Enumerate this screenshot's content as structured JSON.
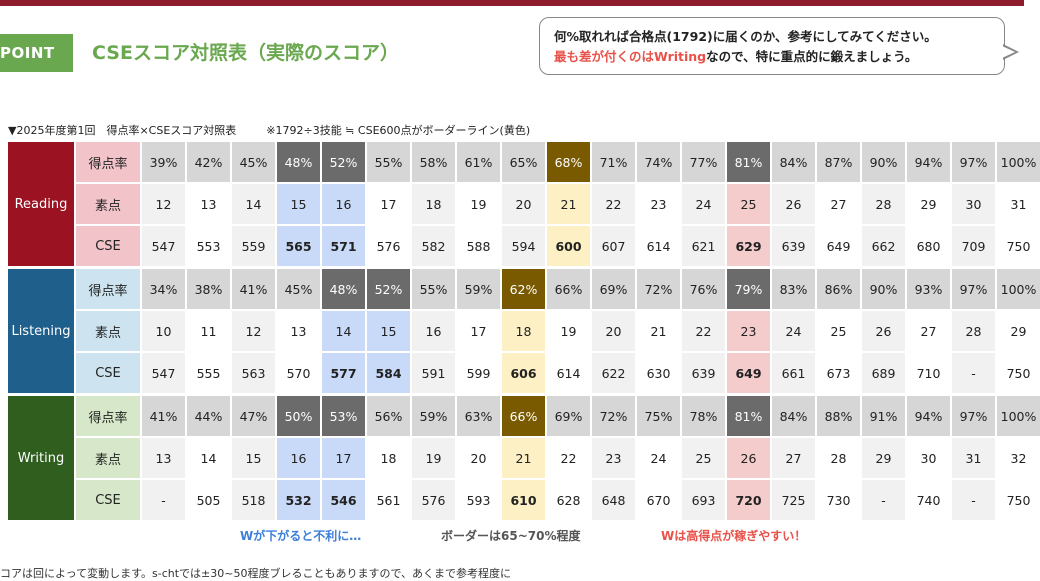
{
  "colors": {
    "brand": "#8e1b2b",
    "green": "#6aa84f",
    "accent_red": "#e8524a",
    "blue_text": "#3d7fd9"
  },
  "header": {
    "badge": "POINT",
    "title": "CSEスコア対照表（実際のスコア）"
  },
  "callout": {
    "line1": "何%取れれば合格点(1792)に届くのか、参考にしてみてください。",
    "line2_red": "最も差が付くのはWriting",
    "line2_rest": "なので、特に重点的に鍛えましょう。"
  },
  "caption": {
    "left": "▼2025年度第1回　得点率×CSEスコア対照表",
    "right": "※1792÷3技能 ≒ CSE600点がボーダーライン(黄色)"
  },
  "row_labels": [
    "得点率",
    "素点",
    "CSE"
  ],
  "sections": [
    {
      "name": "Reading",
      "rates": [
        "39%",
        "42%",
        "45%",
        "48%",
        "52%",
        "55%",
        "58%",
        "61%",
        "65%",
        "68%",
        "71%",
        "74%",
        "77%",
        "81%",
        "84%",
        "87%",
        "90%",
        "94%",
        "97%",
        "100%"
      ],
      "raw": [
        "12",
        "13",
        "14",
        "15",
        "16",
        "17",
        "18",
        "19",
        "20",
        "21",
        "22",
        "23",
        "24",
        "25",
        "26",
        "27",
        "28",
        "29",
        "30",
        "31"
      ],
      "cse": [
        "547",
        "553",
        "559",
        "565",
        "571",
        "576",
        "582",
        "588",
        "594",
        "600",
        "607",
        "614",
        "621",
        "629",
        "639",
        "649",
        "662",
        "680",
        "709",
        "750"
      ]
    },
    {
      "name": "Listening",
      "rates": [
        "34%",
        "38%",
        "41%",
        "45%",
        "48%",
        "52%",
        "55%",
        "59%",
        "62%",
        "66%",
        "69%",
        "72%",
        "76%",
        "79%",
        "83%",
        "86%",
        "90%",
        "93%",
        "97%",
        "100%"
      ],
      "raw": [
        "10",
        "11",
        "12",
        "13",
        "14",
        "15",
        "16",
        "17",
        "18",
        "19",
        "20",
        "21",
        "22",
        "23",
        "24",
        "25",
        "26",
        "27",
        "28",
        "29"
      ],
      "cse": [
        "547",
        "555",
        "563",
        "570",
        "577",
        "584",
        "591",
        "599",
        "606",
        "614",
        "622",
        "630",
        "639",
        "649",
        "661",
        "673",
        "689",
        "710",
        "-",
        "750"
      ]
    },
    {
      "name": "Writing",
      "rates": [
        "41%",
        "44%",
        "47%",
        "50%",
        "53%",
        "56%",
        "59%",
        "63%",
        "66%",
        "69%",
        "72%",
        "75%",
        "78%",
        "81%",
        "84%",
        "88%",
        "91%",
        "94%",
        "97%",
        "100%"
      ],
      "raw": [
        "13",
        "14",
        "15",
        "16",
        "17",
        "18",
        "19",
        "20",
        "21",
        "22",
        "23",
        "24",
        "25",
        "26",
        "27",
        "28",
        "29",
        "30",
        "31",
        "32"
      ],
      "cse": [
        "-",
        "505",
        "518",
        "532",
        "546",
        "561",
        "576",
        "593",
        "610",
        "628",
        "648",
        "670",
        "693",
        "720",
        "725",
        "730",
        "-",
        "740",
        "-",
        "750"
      ]
    }
  ],
  "footer": {
    "blue": "Wが下がると不利に…",
    "gray": "ボーダーは65~70%程度",
    "red": "Wは高得点が稼ぎやすい！",
    "note": "コアは回によって変動します。s-chtでは±30~50程度ブレることもありますので、あくまで参考程度に"
  }
}
